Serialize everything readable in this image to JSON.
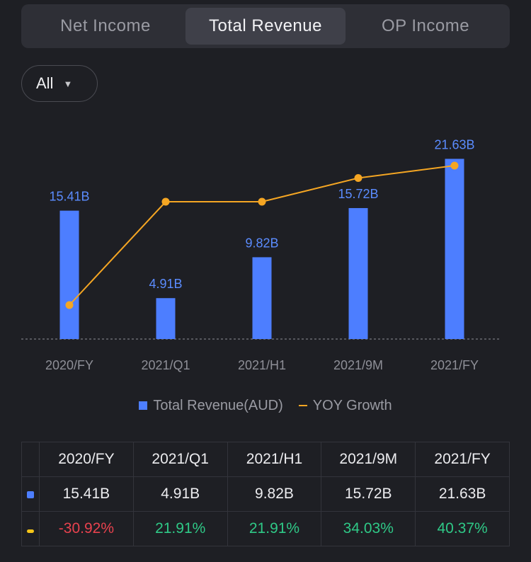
{
  "tabs": [
    {
      "label": "Net Income",
      "active": false
    },
    {
      "label": "Total Revenue",
      "active": true
    },
    {
      "label": "OP Income",
      "active": false
    }
  ],
  "filter": {
    "label": "All",
    "icon": "caret-down-icon"
  },
  "chart_data": {
    "type": "bar",
    "categories": [
      "2020/FY",
      "2021/Q1",
      "2021/H1",
      "2021/9M",
      "2021/FY"
    ],
    "series": [
      {
        "name": "Total Revenue(AUD)",
        "type": "bar",
        "values": [
          15.41,
          4.91,
          9.82,
          15.72,
          21.63
        ],
        "labels": [
          "15.41B",
          "4.91B",
          "9.82B",
          "15.72B",
          "21.63B"
        ],
        "color": "#4d7eff"
      },
      {
        "name": "YOY Growth",
        "type": "line",
        "values": [
          -30.92,
          21.91,
          21.91,
          34.03,
          40.37
        ],
        "color": "#f5a623"
      }
    ]
  },
  "legend": {
    "revenue": "Total Revenue(AUD)",
    "growth": "YOY Growth"
  },
  "table": {
    "headers": [
      "2020/FY",
      "2021/Q1",
      "2021/H1",
      "2021/9M",
      "2021/FY"
    ],
    "revenue": [
      "15.41B",
      "4.91B",
      "9.82B",
      "15.72B",
      "21.63B"
    ],
    "growth": [
      "-30.92%",
      "21.91%",
      "21.91%",
      "34.03%",
      "40.37%"
    ]
  },
  "colors": {
    "bar": "#4d7eff",
    "line": "#f5a623",
    "negative": "#e8424e",
    "positive": "#2fc987"
  }
}
